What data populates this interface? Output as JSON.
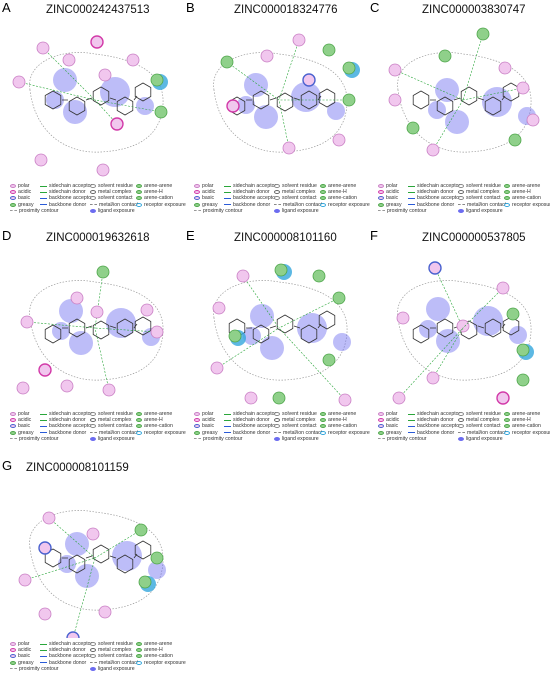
{
  "panels": [
    {
      "letter": "A",
      "title": "ZINC000242437513"
    },
    {
      "letter": "B",
      "title": "ZINC000018324776"
    },
    {
      "letter": "C",
      "title": "ZINC000003830747"
    },
    {
      "letter": "D",
      "title": "ZINC000019632618"
    },
    {
      "letter": "E",
      "title": "ZINC000008101160"
    },
    {
      "letter": "F",
      "title": "ZINC000000537805"
    },
    {
      "letter": "G",
      "title": "ZINC000008101159"
    }
  ],
  "legend": {
    "col1": [
      "polar",
      "acidic",
      "basic",
      "greasy",
      "proximity contour"
    ],
    "col2": [
      "sidechain acceptor",
      "sidechain donor",
      "backbone acceptor",
      "backbone donor"
    ],
    "col3": [
      "solvent residue",
      "metal complex",
      "solvent contact",
      "metal/ion contact",
      "ligand exposure"
    ],
    "col4": [
      "arene-arene",
      "arene-H",
      "arene-cation",
      "receptor exposure"
    ]
  },
  "colors": {
    "polar": "#f1c7ee",
    "acidic": "#d23aa8",
    "basic": "#4a62cf",
    "greasy": "#8fd08a",
    "ligand_exposure": "#6c6cf0",
    "receptor_exposure": "#33a6dc",
    "interaction": "#2aa63a"
  }
}
